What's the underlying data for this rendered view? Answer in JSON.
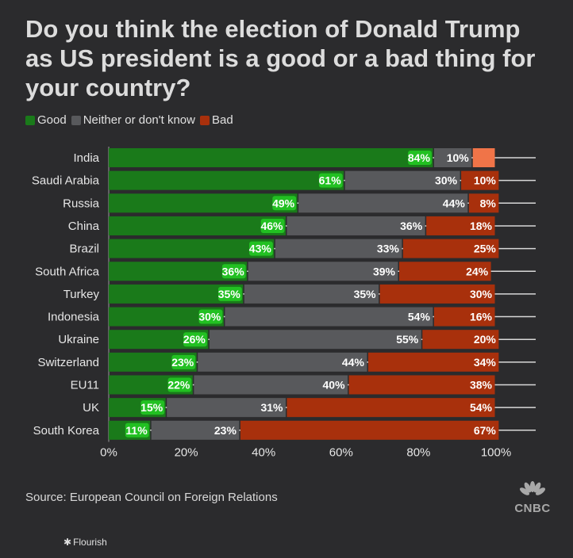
{
  "title": "Do you think the election of Donald Trump as US president is a good or a bad thing for your country?",
  "legend": [
    {
      "label": "Good",
      "color": "#1a7a1a"
    },
    {
      "label": "Neither or don't know",
      "color": "#58595c"
    },
    {
      "label": "Bad",
      "color": "#a8300c"
    }
  ],
  "chart_data": {
    "type": "bar",
    "orientation": "horizontal",
    "stacked": true,
    "categories": [
      "India",
      "Saudi Arabia",
      "Russia",
      "China",
      "Brazil",
      "South Africa",
      "Turkey",
      "Indonesia",
      "Ukraine",
      "Switzerland",
      "EU11",
      "UK",
      "South Korea"
    ],
    "series": [
      {
        "name": "Good",
        "color": "#1a7a1a",
        "values": [
          84,
          61,
          49,
          46,
          43,
          36,
          35,
          30,
          26,
          23,
          22,
          15,
          11
        ]
      },
      {
        "name": "Neither or don't know",
        "color": "#58595c",
        "values": [
          10,
          30,
          44,
          36,
          33,
          39,
          35,
          54,
          55,
          44,
          40,
          31,
          23
        ]
      },
      {
        "name": "Bad",
        "color": "#a8300c",
        "values": [
          6,
          10,
          8,
          18,
          25,
          24,
          30,
          16,
          20,
          34,
          38,
          54,
          67
        ]
      }
    ],
    "highlight_bad_india_color": "#f07448",
    "label_rules": {
      "Bad": {
        "hide_below": 7
      }
    },
    "x_ticks": [
      "0%",
      "20%",
      "40%",
      "60%",
      "80%",
      "100%"
    ],
    "xlim": [
      0,
      100
    ],
    "xlabel": "",
    "ylabel": ""
  },
  "source": "Source: European Council on Foreign Relations",
  "logo_text": "CNBC",
  "credit": "Flourish"
}
